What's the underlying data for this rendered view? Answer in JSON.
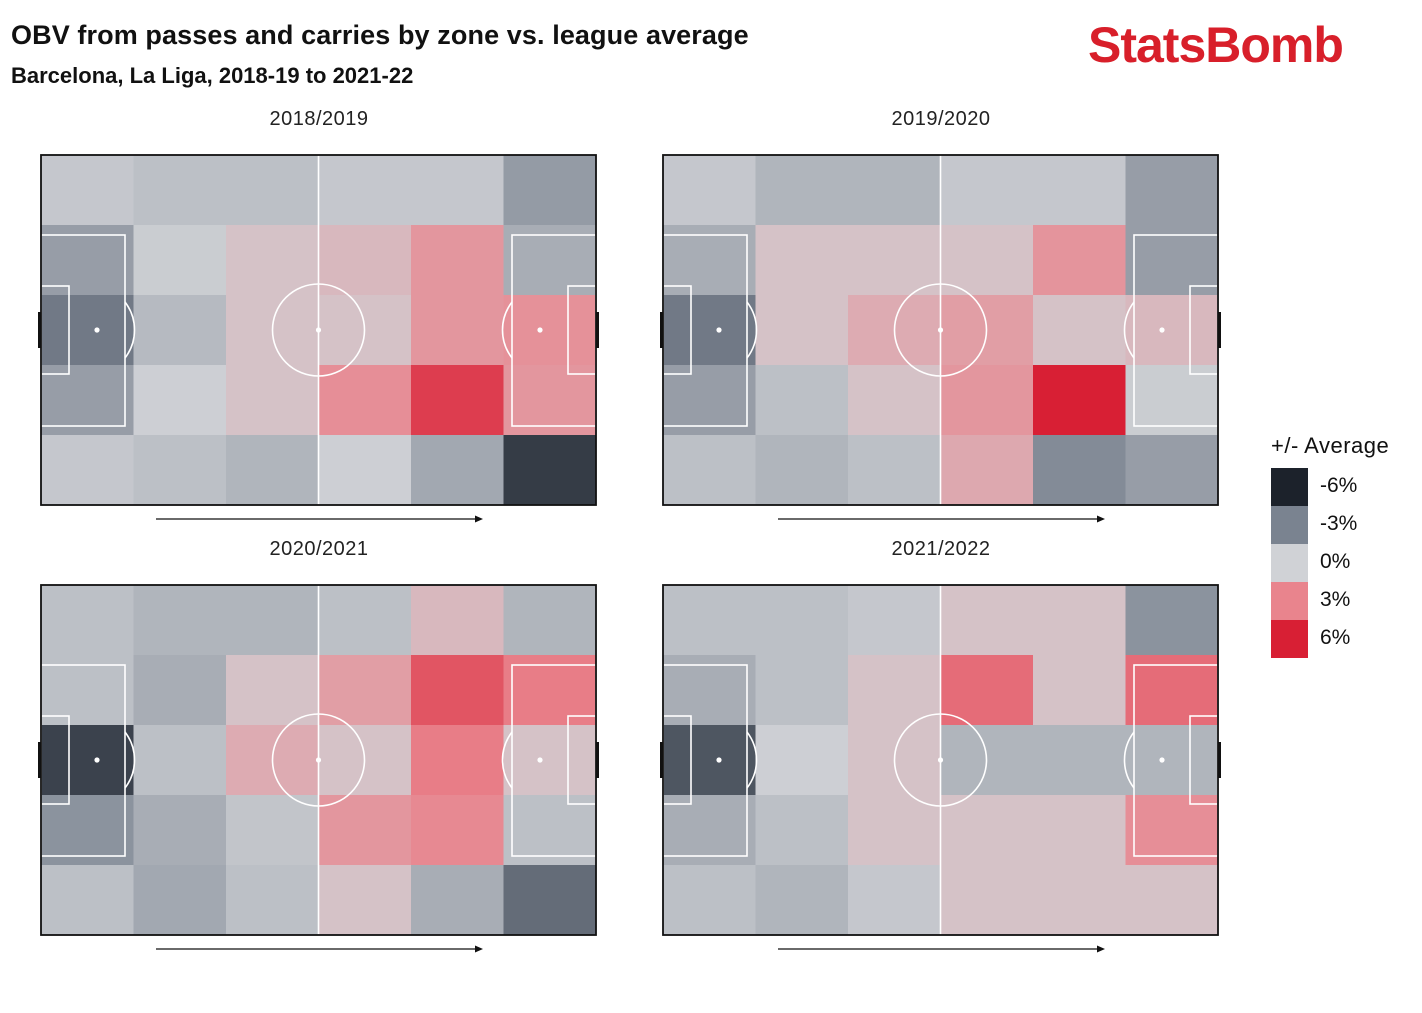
{
  "header": {
    "title": "OBV from passes and carries by zone vs. league average",
    "subtitle": "Barcelona, La Liga, 2018-19 to 2021-22",
    "brand": "StatsBomb",
    "brand_color": "#d81f2a"
  },
  "chart_data": [
    {
      "type": "heatmap",
      "title": "2018/2019",
      "direction": "left-to-right",
      "grid": [
        [
          -0.4,
          -0.7,
          -0.7,
          -0.4,
          -0.4,
          -2.1
        ],
        [
          -2.0,
          -0.2,
          0.6,
          1.0,
          2.3,
          -1.4
        ],
        [
          -3.3,
          -0.9,
          0.6,
          0.6,
          2.3,
          2.5
        ],
        [
          -2.0,
          -0.1,
          0.6,
          2.6,
          5.1,
          2.3
        ],
        [
          -0.4,
          -0.7,
          -1.1,
          -0.1,
          -1.6,
          -5.2
        ]
      ]
    },
    {
      "type": "heatmap",
      "title": "2019/2020",
      "direction": "left-to-right",
      "grid": [
        [
          -0.4,
          -1.1,
          -1.1,
          -0.4,
          -0.4,
          -2.0
        ],
        [
          -1.4,
          0.6,
          0.6,
          0.6,
          2.4,
          -2.0
        ],
        [
          -3.3,
          0.6,
          1.5,
          2.0,
          0.6,
          1.0
        ],
        [
          -2.0,
          -0.7,
          0.6,
          2.3,
          6.0,
          -0.2
        ],
        [
          -0.7,
          -1.1,
          -0.7,
          1.6,
          -2.7,
          -2.0
        ]
      ]
    },
    {
      "type": "heatmap",
      "title": "2020/2021",
      "direction": "left-to-right",
      "grid": [
        [
          -0.7,
          -1.1,
          -1.1,
          -0.7,
          1.0,
          -1.1
        ],
        [
          -0.7,
          -1.4,
          0.6,
          2.0,
          4.4,
          3.2
        ],
        [
          -5.0,
          -0.7,
          1.5,
          0.6,
          3.2,
          0.6
        ],
        [
          -2.4,
          -1.4,
          -0.5,
          2.3,
          2.8,
          -0.7
        ],
        [
          -0.7,
          -1.6,
          -0.7,
          0.6,
          -1.4,
          -3.7
        ]
      ]
    },
    {
      "type": "heatmap",
      "title": "2021/2022",
      "direction": "left-to-right",
      "grid": [
        [
          -0.7,
          -0.7,
          -0.4,
          0.6,
          0.6,
          -2.4
        ],
        [
          -1.4,
          -0.7,
          0.6,
          3.7,
          0.6,
          3.7
        ],
        [
          -4.4,
          -0.1,
          0.6,
          -1.1,
          -1.1,
          -1.1
        ],
        [
          -1.4,
          -0.7,
          0.6,
          0.6,
          0.6,
          2.6
        ],
        [
          -0.7,
          -1.1,
          -0.4,
          0.6,
          0.6,
          0.6
        ]
      ]
    }
  ],
  "legend": {
    "title": "+/- Average",
    "items": [
      {
        "label": "-6%",
        "value": -6,
        "color": "#1c222b"
      },
      {
        "label": "-3%",
        "value": -3,
        "color": "#7a8390"
      },
      {
        "label": "0%",
        "value": 0,
        "color": "#d0d2d6"
      },
      {
        "label": "3%",
        "value": 3,
        "color": "#e9848d"
      },
      {
        "label": "6%",
        "value": 6,
        "color": "#d81f34"
      }
    ]
  }
}
